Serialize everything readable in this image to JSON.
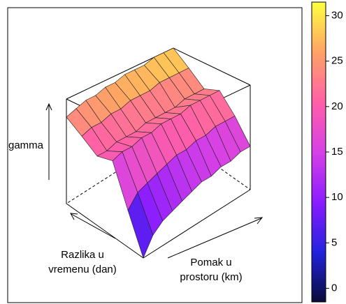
{
  "chart_data": {
    "type": "surface",
    "zlabel": "gamma",
    "ylabel": [
      "Razlika u",
      "vremenu (dan)"
    ],
    "xlabel": [
      "Pomak u",
      "prostoru (km)"
    ],
    "z": [
      [
        1,
        5,
        7,
        8,
        9,
        10,
        11,
        11,
        12,
        12,
        13,
        13
      ],
      [
        10,
        13,
        14,
        15,
        16,
        17,
        17,
        18,
        18,
        19,
        19,
        19
      ],
      [
        20,
        21,
        21,
        22,
        22,
        23,
        23,
        23,
        24,
        24,
        24,
        24
      ],
      [
        19,
        19,
        20,
        20,
        20,
        21,
        21,
        21,
        21,
        22,
        22,
        22
      ],
      [
        22,
        23,
        23,
        24,
        24,
        25,
        25,
        25,
        26,
        26,
        26,
        26
      ],
      [
        25,
        26,
        27,
        27,
        28,
        28,
        29,
        29,
        29,
        30,
        30,
        30
      ]
    ],
    "zlim": [
      1,
      30
    ],
    "colormap": [
      "#0b0b3a",
      "#2222dd",
      "#8a1cff",
      "#d640e6",
      "#ff5fa8",
      "#ffa266",
      "#ffff40"
    ],
    "colorbar": {
      "ylim": [
        -1.5,
        31.5
      ],
      "yticks": [
        0,
        5,
        10,
        15,
        20,
        25,
        30
      ]
    }
  }
}
